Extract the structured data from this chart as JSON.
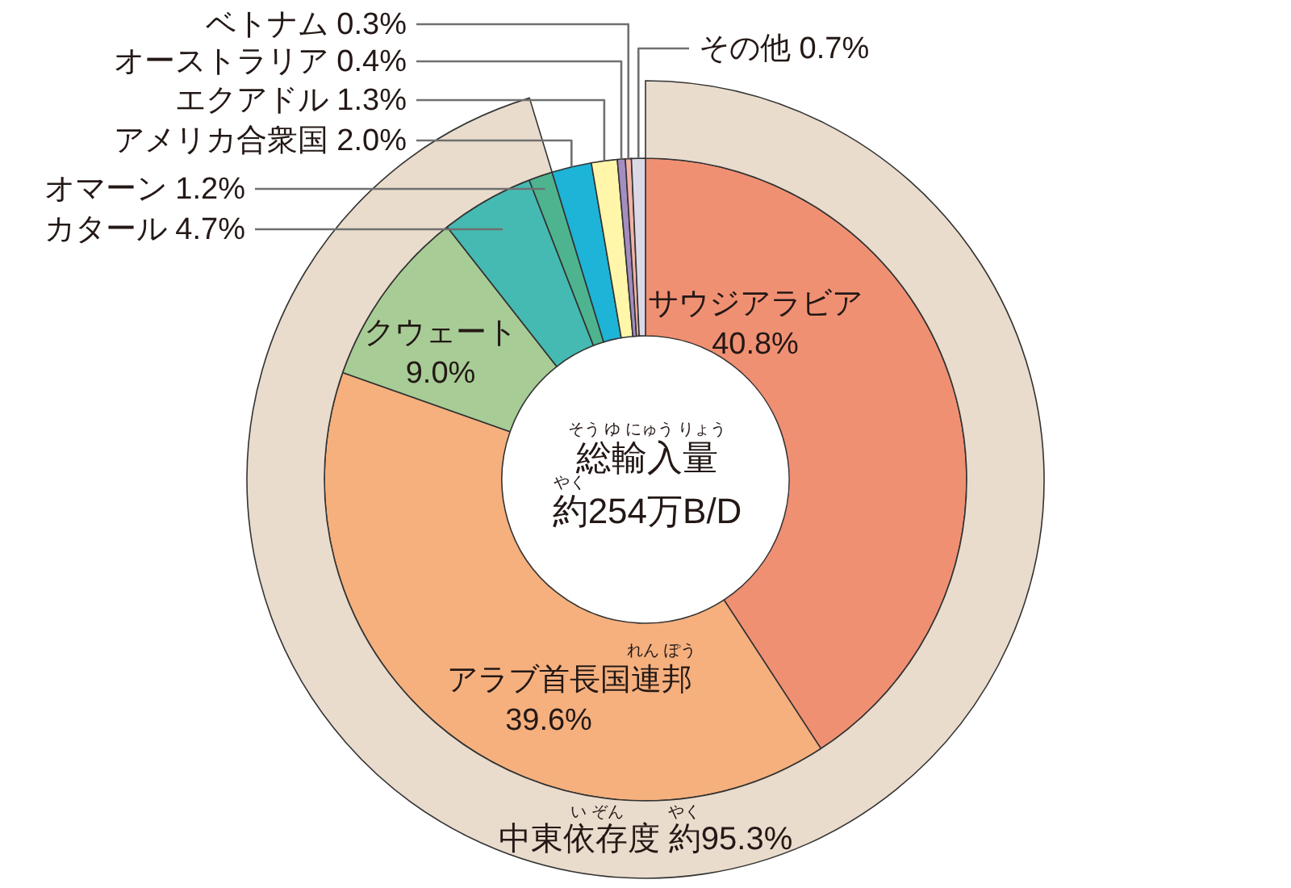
{
  "chart_data": [
    {
      "type": "donut",
      "categories": [
        "サウジアラビア",
        "アラブ首長国連邦",
        "クウェート",
        "カタール",
        "オマーン",
        "アメリカ合衆国",
        "エクアドル",
        "オーストラリア",
        "ベトナム",
        "その他"
      ],
      "values": [
        40.8,
        39.6,
        9.0,
        4.7,
        1.2,
        2.0,
        1.3,
        0.4,
        0.3,
        0.7
      ],
      "colors": [
        "#f09073",
        "#f5b07e",
        "#a8cc96",
        "#45bab2",
        "#4db48f",
        "#1db4d8",
        "#fff6aa",
        "#a48dc1",
        "#f2b3a6",
        "#dcd9e6"
      ],
      "value_labels": [
        "40.8%",
        "39.6%",
        "9.0%",
        "4.7%",
        "1.2%",
        "2.0%",
        "1.3%",
        "0.4%",
        "0.3%",
        "0.7%"
      ],
      "annotations": [
        "総輸入量",
        "そう ゆ にゅう りょう",
        "約254万B/D",
        "やく",
        "れん ぽう"
      ]
    },
    {
      "type": "pie",
      "categories": [
        "中東依存度"
      ],
      "values": [
        95.3
      ],
      "colors": [
        "#e9dccd"
      ],
      "value_labels": [
        "約95.3%"
      ],
      "annotations": [
        "い ぞん",
        "やく"
      ]
    }
  ]
}
